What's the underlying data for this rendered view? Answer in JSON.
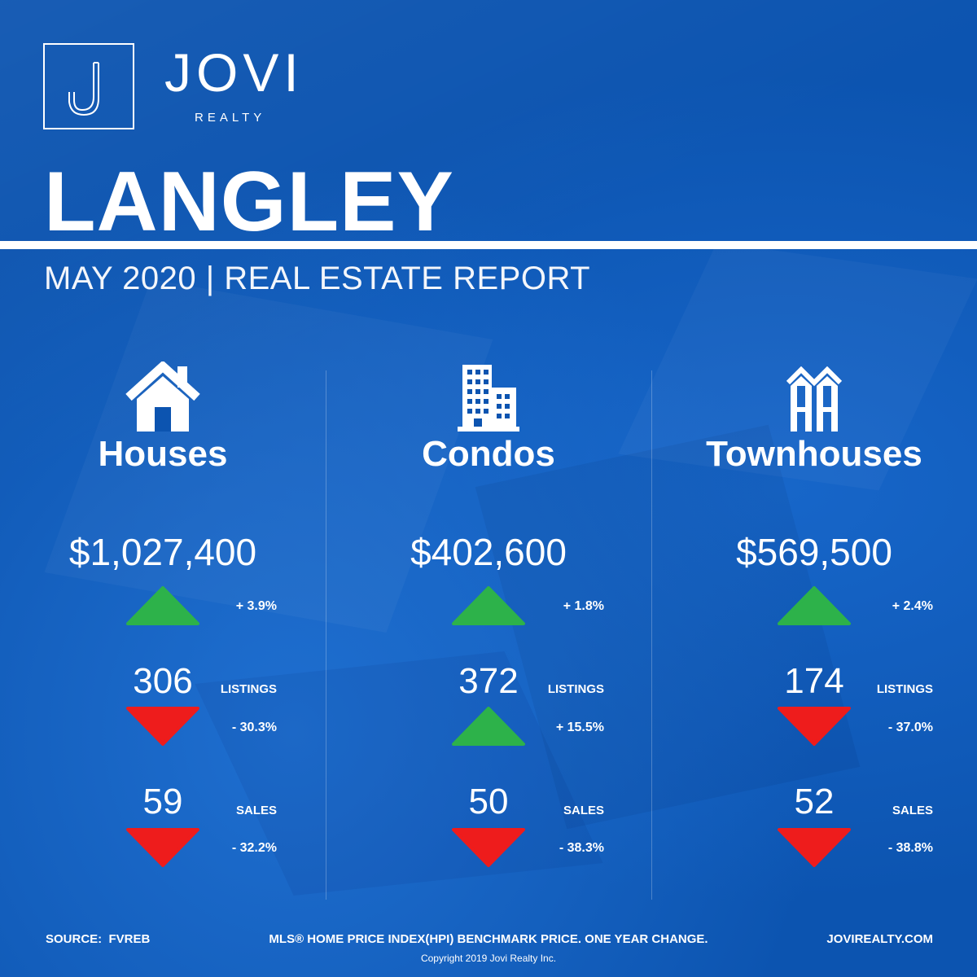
{
  "brand": {
    "name": "JOVI",
    "sub": "REALTY",
    "logo_icon": "j-monogram-icon"
  },
  "header": {
    "city": "LANGLEY",
    "subtitle": "MAY 2020 | REAL ESTATE REPORT"
  },
  "colors": {
    "background": "#0c54b0",
    "up": "#2db24a",
    "down": "#ee1c1c",
    "text": "#ffffff"
  },
  "columns": [
    {
      "icon": "house-icon",
      "title": "Houses",
      "price": "$1,027,400",
      "price_change": "+ 3.9%",
      "price_dir": "up",
      "listings": "306",
      "listings_label": "LISTINGS",
      "listings_change": "- 30.3%",
      "listings_dir": "down",
      "sales": "59",
      "sales_label": "SALES",
      "sales_change": "- 32.2%",
      "sales_dir": "down"
    },
    {
      "icon": "building-icon",
      "title": "Condos",
      "price": "$402,600",
      "price_change": "+ 1.8%",
      "price_dir": "up",
      "listings": "372",
      "listings_label": "LISTINGS",
      "listings_change": "+ 15.5%",
      "listings_dir": "up",
      "sales": "50",
      "sales_label": "SALES",
      "sales_change": "- 38.3%",
      "sales_dir": "down"
    },
    {
      "icon": "townhouse-icon",
      "title": "Townhouses",
      "price": "$569,500",
      "price_change": "+ 2.4%",
      "price_dir": "up",
      "listings": "174",
      "listings_label": "LISTINGS",
      "listings_change": "- 37.0%",
      "listings_dir": "down",
      "sales": "52",
      "sales_label": "SALES",
      "sales_change": "- 38.8%",
      "sales_dir": "down"
    }
  ],
  "footer": {
    "source": "SOURCE:  FVREB",
    "note": "MLS® HOME PRICE INDEX(HPI) BENCHMARK PRICE. ONE YEAR CHANGE.",
    "website": "JOVIREALTY.COM",
    "copyright": "Copyright 2019 Jovi Realty Inc."
  }
}
